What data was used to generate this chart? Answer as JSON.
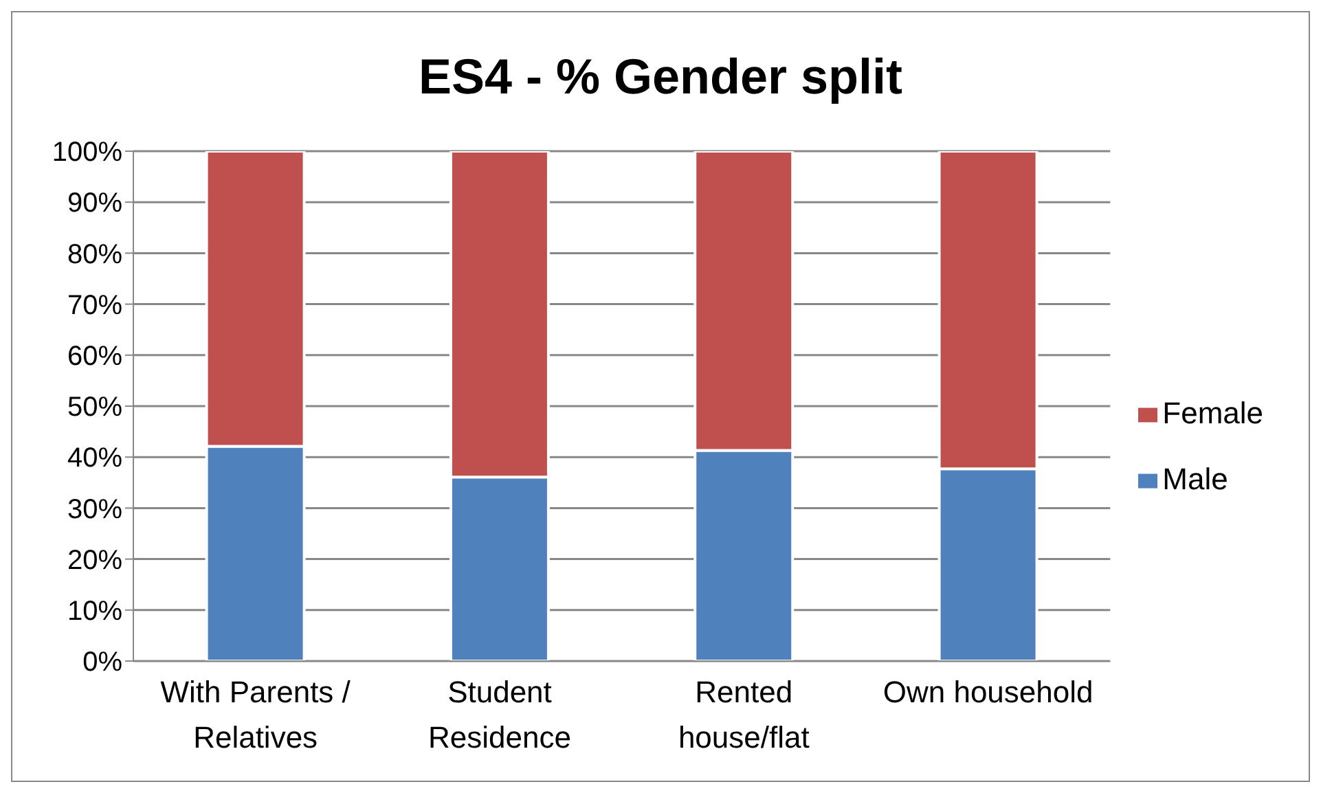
{
  "chart_data": {
    "type": "bar",
    "title": "ES4 - % Gender split",
    "categories": [
      "With Parents / Relatives",
      "Student Residence",
      "Rented house/flat",
      "Own household"
    ],
    "stacked": true,
    "series": [
      {
        "name": "Male",
        "color": "#4f81bd",
        "values": [
          42.1,
          36.1,
          41.3,
          37.7
        ]
      },
      {
        "name": "Female",
        "color": "#c0504d",
        "values": [
          57.9,
          63.9,
          58.7,
          62.3
        ]
      }
    ],
    "ylim": [
      0,
      100
    ],
    "yticks": [
      {
        "value": 0,
        "label": "0%"
      },
      {
        "value": 10,
        "label": "10%"
      },
      {
        "value": 20,
        "label": "20%"
      },
      {
        "value": 30,
        "label": "30%"
      },
      {
        "value": 40,
        "label": "40%"
      },
      {
        "value": 50,
        "label": "50%"
      },
      {
        "value": 60,
        "label": "60%"
      },
      {
        "value": 70,
        "label": "70%"
      },
      {
        "value": 80,
        "label": "80%"
      },
      {
        "value": 90,
        "label": "90%"
      },
      {
        "value": 100,
        "label": "100%"
      }
    ],
    "grid": "y",
    "legend": "right"
  }
}
